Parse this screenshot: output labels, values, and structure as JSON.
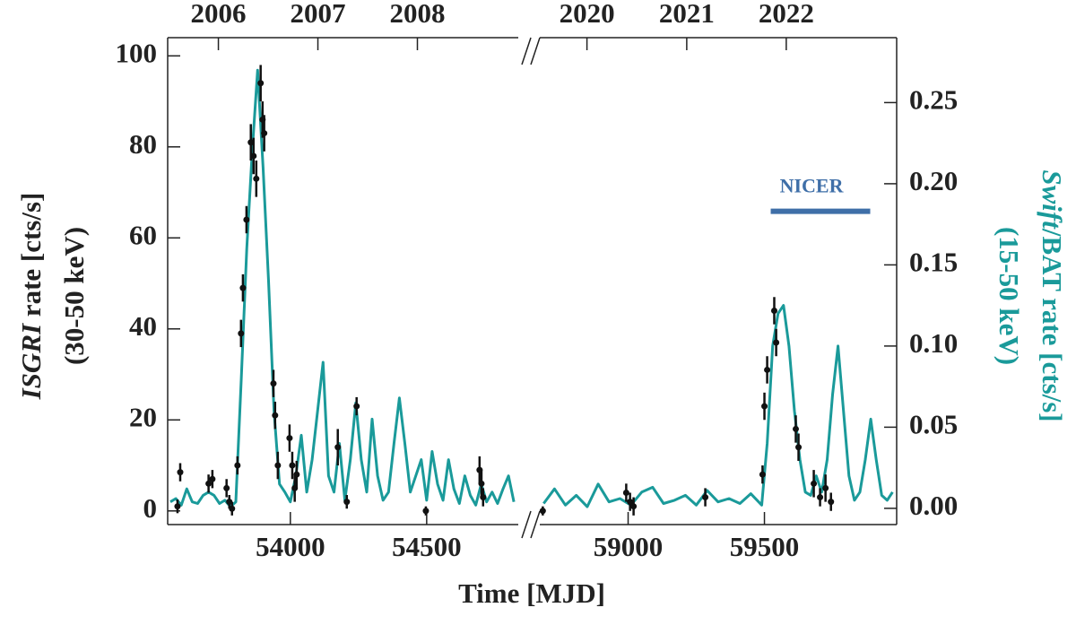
{
  "chart_data": {
    "type": "line",
    "xlabel": "Time [MJD]",
    "ylabel": {
      "instrument": "ISGRI",
      "text": "rate [cts/s]",
      "band": "(30-50 keV)"
    },
    "y2label": {
      "instrument": "Swift",
      "text": "/BAT rate [cts/s]",
      "band": "(15-50 keV)",
      "color": "#1a9a9a"
    },
    "xlim_segments": [
      [
        53550,
        54836
      ],
      [
        58676,
        59985
      ]
    ],
    "xticks": [
      54000,
      54500,
      59000,
      59500
    ],
    "top_xticks": [
      {
        "value": 53736,
        "label": "2006"
      },
      {
        "value": 54101,
        "label": "2007"
      },
      {
        "value": 54466,
        "label": "2008"
      },
      {
        "value": 58849,
        "label": "2020"
      },
      {
        "value": 59215,
        "label": "2021"
      },
      {
        "value": 59580,
        "label": "2022"
      }
    ],
    "ylim": [
      -3,
      104
    ],
    "yticks": [
      0,
      20,
      40,
      60,
      80,
      100
    ],
    "y2lim": [
      -0.01,
      0.29
    ],
    "y2ticks": [
      {
        "value": 0,
        "label": "0.00"
      },
      0.05,
      {
        "value": 0.1,
        "label": "0.10"
      },
      0.15,
      {
        "value": 0.2,
        "label": "0.20"
      },
      0.25
    ],
    "series": [
      {
        "style": "points",
        "color": "#111111",
        "x": [
          53586,
          53596,
          53700,
          53714,
          53766,
          53776,
          53786,
          53806,
          53819,
          53826,
          53839,
          53855,
          53865,
          53875,
          53891,
          53898,
          53904,
          53938,
          53944,
          53954,
          53997,
          54007,
          54016,
          54023,
          54174,
          54207,
          54243,
          54497,
          54694,
          54701,
          54707,
          58687,
          58993,
          59007,
          59020,
          59283,
          59493,
          59500,
          59510,
          59536,
          59543,
          59615,
          59625,
          59681,
          59704,
          59724,
          59744
        ],
        "values": [
          1,
          8.5,
          6,
          7,
          5,
          2,
          0.5,
          10,
          39,
          49,
          64,
          81,
          78,
          73,
          94,
          86,
          83,
          28,
          21,
          10,
          16,
          10,
          5,
          8,
          14,
          2,
          23,
          0,
          9,
          6,
          3,
          0,
          4,
          2,
          1,
          3,
          8,
          23,
          31,
          44,
          37,
          18,
          14,
          6,
          3,
          5,
          2
        ],
        "errors": [
          1.5,
          2,
          2,
          2,
          2,
          1.5,
          1.5,
          2,
          3,
          3,
          3,
          4,
          4,
          4,
          4,
          4,
          4,
          3,
          3,
          3,
          3,
          3,
          3,
          3,
          4,
          1.5,
          2,
          1,
          3,
          3,
          2,
          1,
          2,
          2,
          2,
          2,
          2,
          3,
          3,
          3,
          3,
          3,
          3,
          3,
          2,
          3,
          2
        ]
      },
      {
        "style": "line",
        "axis": "y2",
        "color": "#1a9a9a",
        "x": [
          53560,
          53580,
          53600,
          53620,
          53640,
          53660,
          53680,
          53700,
          53720,
          53740,
          53760,
          53780,
          53800,
          53820,
          53840,
          53860,
          53880,
          53900,
          53920,
          53940,
          53960,
          53980,
          54000,
          54020,
          54040,
          54060,
          54080,
          54100,
          54120,
          54140,
          54160,
          54180,
          54200,
          54220,
          54240,
          54260,
          54280,
          54300,
          54320,
          54340,
          54360,
          54380,
          54400,
          54420,
          54440,
          54460,
          54480,
          54500,
          54520,
          54540,
          54560,
          54580,
          54600,
          54620,
          54640,
          54660,
          54680,
          54700,
          54720,
          54740,
          54760,
          54780,
          54800,
          54820
        ],
        "values": [
          0.004,
          0.006,
          0.002,
          0.012,
          0.004,
          0.003,
          0.008,
          0.01,
          0.008,
          0.003,
          0.005,
          0.001,
          0.004,
          0.08,
          0.16,
          0.22,
          0.27,
          0.21,
          0.14,
          0.06,
          0.015,
          0.01,
          0.004,
          0.02,
          0.045,
          0.01,
          0.03,
          0.06,
          0.09,
          0.02,
          0.01,
          0.04,
          0.005,
          0.03,
          0.065,
          0.03,
          0.01,
          0.055,
          0.02,
          0.005,
          0.01,
          0.04,
          0.068,
          0.04,
          0.01,
          0.02,
          0.03,
          0.005,
          0.035,
          0.015,
          0.005,
          0.03,
          0.012,
          0.003,
          0.02,
          0.008,
          0.002,
          0.015,
          0.004,
          0.01,
          0.003,
          0.012,
          0.02,
          0.004
        ]
      },
      {
        "style": "line",
        "axis": "y2",
        "color": "#1a9a9a",
        "x": [
          58690,
          58730,
          58770,
          58810,
          58850,
          58890,
          58930,
          58970,
          59010,
          59050,
          59090,
          59130,
          59170,
          59210,
          59250,
          59290,
          59330,
          59370,
          59410,
          59450,
          59490,
          59510,
          59530,
          59550,
          59570,
          59590,
          59610,
          59630,
          59650,
          59670,
          59690,
          59710,
          59730,
          59750,
          59770,
          59790,
          59810,
          59830,
          59850,
          59870,
          59890,
          59910,
          59930,
          59950,
          59970
        ],
        "values": [
          0.003,
          0.012,
          0.002,
          0.008,
          0.001,
          0.015,
          0.004,
          0.006,
          0.002,
          0.01,
          0.013,
          0.003,
          0.005,
          0.008,
          0.002,
          0.011,
          0.004,
          0.006,
          0.003,
          0.009,
          0.002,
          0.04,
          0.1,
          0.12,
          0.125,
          0.1,
          0.06,
          0.03,
          0.01,
          0.008,
          0.02,
          0.01,
          0.03,
          0.07,
          0.1,
          0.06,
          0.02,
          0.005,
          0.01,
          0.03,
          0.055,
          0.03,
          0.008,
          0.005,
          0.01
        ]
      }
    ],
    "annotations": [
      {
        "text": "NICER",
        "x": [
          59523,
          59888
        ],
        "y": 0.183,
        "color": "#3f6fa8"
      }
    ]
  }
}
